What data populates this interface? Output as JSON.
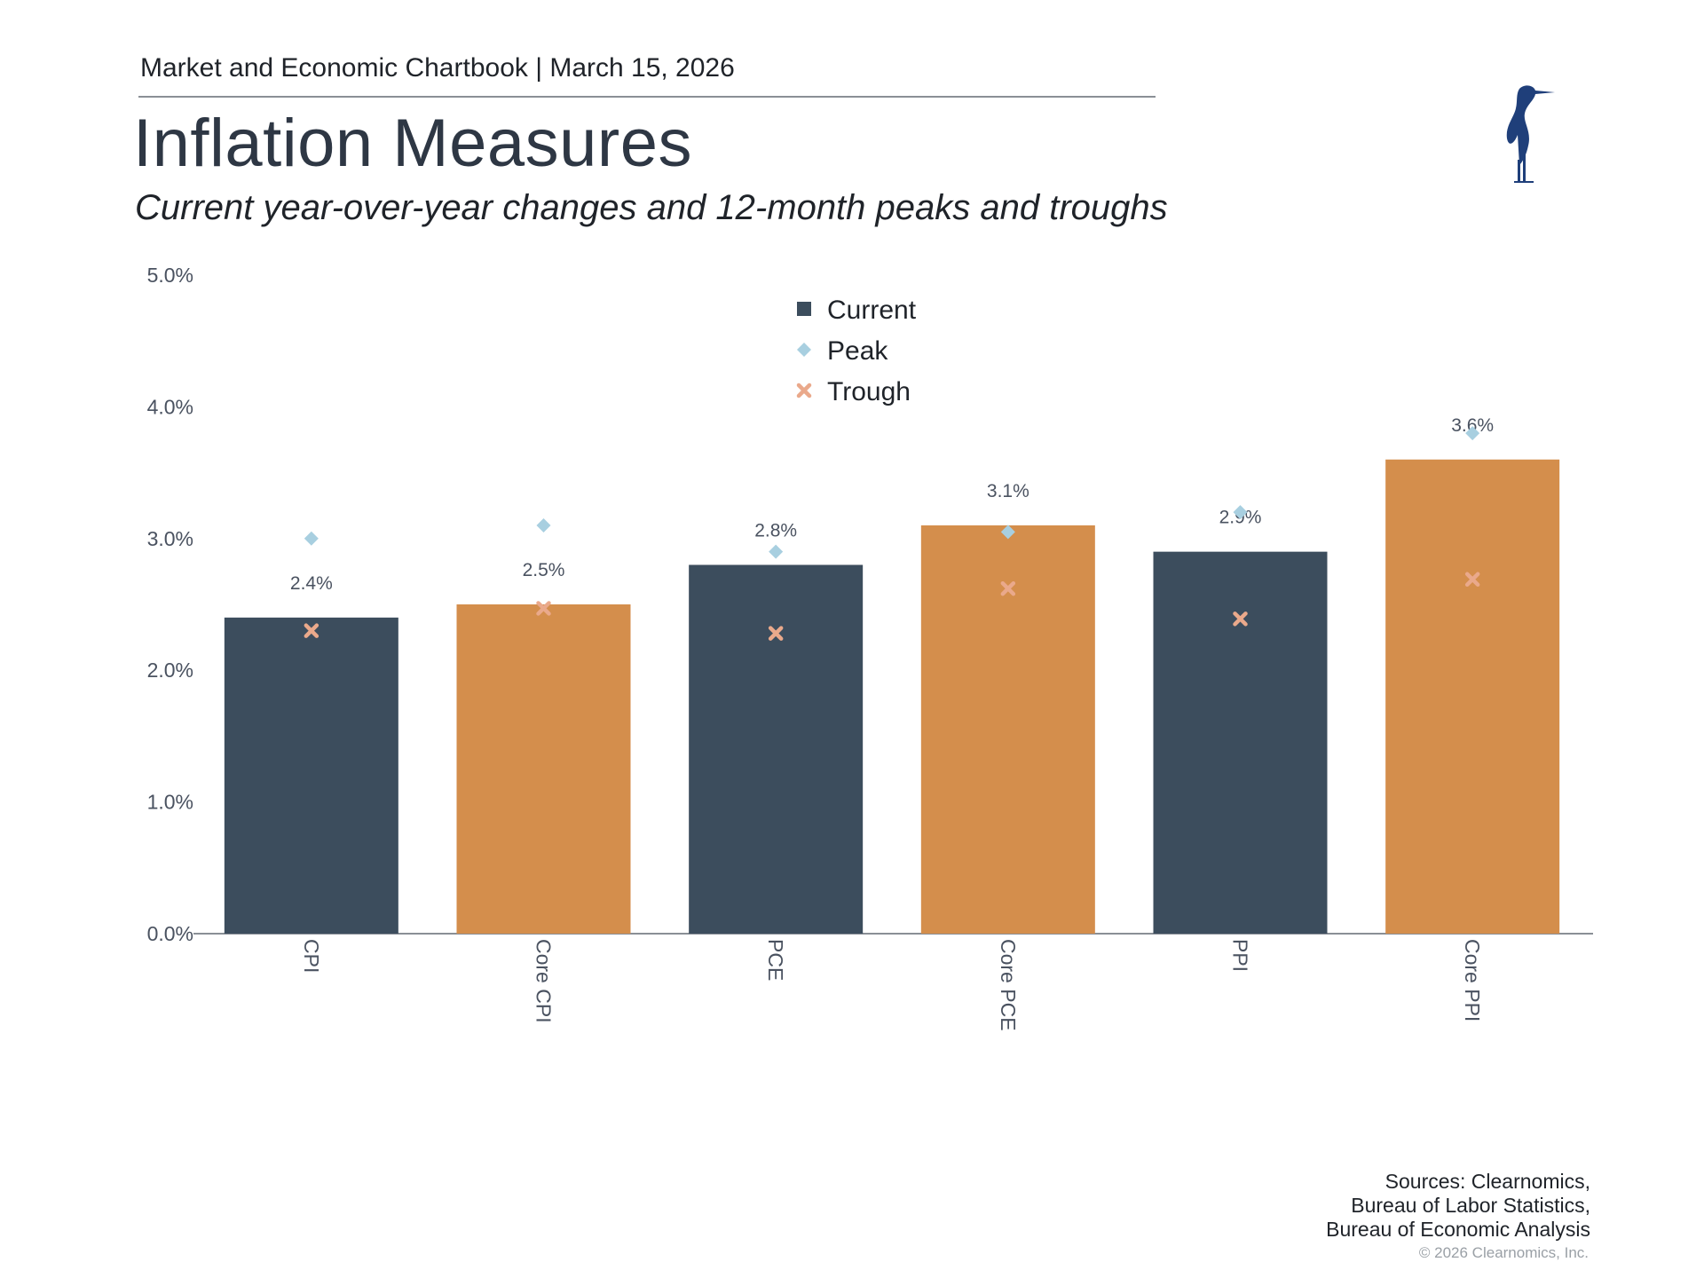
{
  "header": {
    "chartbook": "Market and Economic Chartbook | March 15, 2026",
    "title": "Inflation Measures",
    "subtitle": "Current year-over-year changes and 12-month peaks and troughs"
  },
  "logo": {
    "icon": "heron-logo-icon",
    "color": "#1f3f7a"
  },
  "chart_data": {
    "type": "bar",
    "categories": [
      "CPI",
      "Core CPI",
      "PCE",
      "Core PCE",
      "PPI",
      "Core PPI"
    ],
    "series": [
      {
        "name": "Current",
        "kind": "bar",
        "values": [
          2.4,
          2.5,
          2.8,
          3.1,
          2.9,
          3.6
        ]
      },
      {
        "name": "Peak",
        "kind": "marker",
        "marker": "diamond",
        "values": [
          3.0,
          3.1,
          2.9,
          3.05,
          3.2,
          3.8
        ]
      },
      {
        "name": "Trough",
        "kind": "marker",
        "marker": "x",
        "values": [
          2.3,
          2.47,
          2.28,
          2.62,
          2.39,
          2.69
        ]
      }
    ],
    "data_labels": [
      "2.4%",
      "2.5%",
      "2.8%",
      "3.1%",
      "2.9%",
      "3.6%"
    ],
    "bar_colors": [
      "#3c4d5d",
      "#d48e4c",
      "#3c4d5d",
      "#d48e4c",
      "#3c4d5d",
      "#d48e4c"
    ],
    "peak_color": "#a8cfe0",
    "trough_color": "#eaa98b",
    "legend_marker_current": "#3c4d5d",
    "yticks": [
      "0.0%",
      "1.0%",
      "2.0%",
      "3.0%",
      "4.0%",
      "5.0%"
    ],
    "ylim": [
      0,
      5
    ],
    "legend_position": "top-center",
    "grid": false
  },
  "footer": {
    "sources": [
      "Sources: Clearnomics,",
      "Bureau of Labor Statistics,",
      "Bureau of Economic Analysis"
    ],
    "copyright": "© 2026 Clearnomics, Inc."
  }
}
